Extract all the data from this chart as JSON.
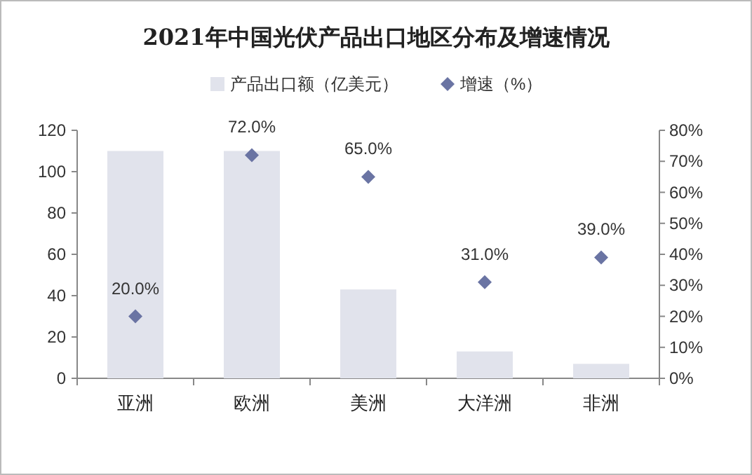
{
  "chart_data": {
    "type": "bar",
    "title": "2021年中国光伏产品出口地区分布及增速情况",
    "categories": [
      "亚洲",
      "欧洲",
      "美洲",
      "大洋洲",
      "非洲"
    ],
    "series": [
      {
        "name": "产品出口额（亿美元）",
        "color": "#e1e3ec",
        "values": [
          110,
          110,
          43,
          13,
          7
        ]
      },
      {
        "name": "增速（%）",
        "type": "scatter",
        "axis": "y2",
        "color": "#6a74a3",
        "marker": "diamond",
        "values": [
          20,
          72,
          65,
          31,
          39
        ],
        "value_labels": [
          "20.0%",
          "72.0%",
          "65.0%",
          "31.0%",
          "39.0%"
        ]
      }
    ],
    "ylim": [
      0,
      120
    ],
    "yticks": [
      0,
      20,
      40,
      60,
      80,
      100,
      120
    ],
    "y2lim": [
      0,
      80
    ],
    "y2ticks": [
      {
        "value": 0,
        "label": "0%"
      },
      {
        "value": 10,
        "label": "10%"
      },
      {
        "value": 20,
        "label": "20%"
      },
      {
        "value": 30,
        "label": "30%"
      },
      {
        "value": 40,
        "label": "40%"
      },
      {
        "value": 50,
        "label": "50%"
      },
      {
        "value": 60,
        "label": "60%"
      },
      {
        "value": 70,
        "label": "70%"
      },
      {
        "value": 80,
        "label": "80%"
      }
    ],
    "legend": "top",
    "grid": false
  }
}
